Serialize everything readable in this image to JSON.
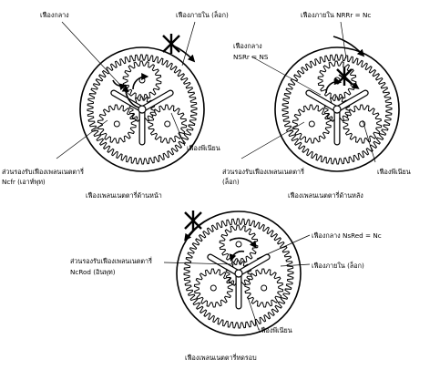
{
  "colors": {
    "line": "#000000",
    "background": "#ffffff",
    "gear_fill": "#ffffff"
  },
  "diagrams": [
    {
      "id": "front",
      "labels": {
        "sun": "เฟืองกลาง",
        "ring": "เฟืองภายใน (ล็อก)",
        "carrier_line1": "ส่วนรองรับเฟืองเพลนเนตตารี่",
        "carrier_line2": "Ncfr (เอาท์พุท)",
        "pinion": "เฟืองพีเนียน"
      },
      "caption": "เฟืองเพลนเนตตารี่ด้านหน้า"
    },
    {
      "id": "rear",
      "labels": {
        "ring": "เฟืองภายใน NRRr = Nc",
        "sun_line1": "เฟืองกลาง",
        "sun_line2": "NSRr = NS",
        "carrier_line1": "ส่วนรองรับเฟืองเพลนเนตตารี่",
        "carrier_line2": "(ล็อก)",
        "pinion": "เฟืองพีเนียน"
      },
      "caption": "เฟืองเพลนเนตตารี่ด้านหลัง"
    },
    {
      "id": "reduction",
      "labels": {
        "carrier_line1": "ส่วนรองรับเฟืองเพลนเนตตารี่",
        "carrier_line2": "NcRod (อินพุท)",
        "sun": "เฟืองกลาง NsRed = Nc",
        "ring": "เฟืองภายใน (ล็อก)",
        "pinion": "เฟืองพีเนียน"
      },
      "caption": "เฟืองเพลนเนตตารี่ทดรอบ"
    }
  ]
}
